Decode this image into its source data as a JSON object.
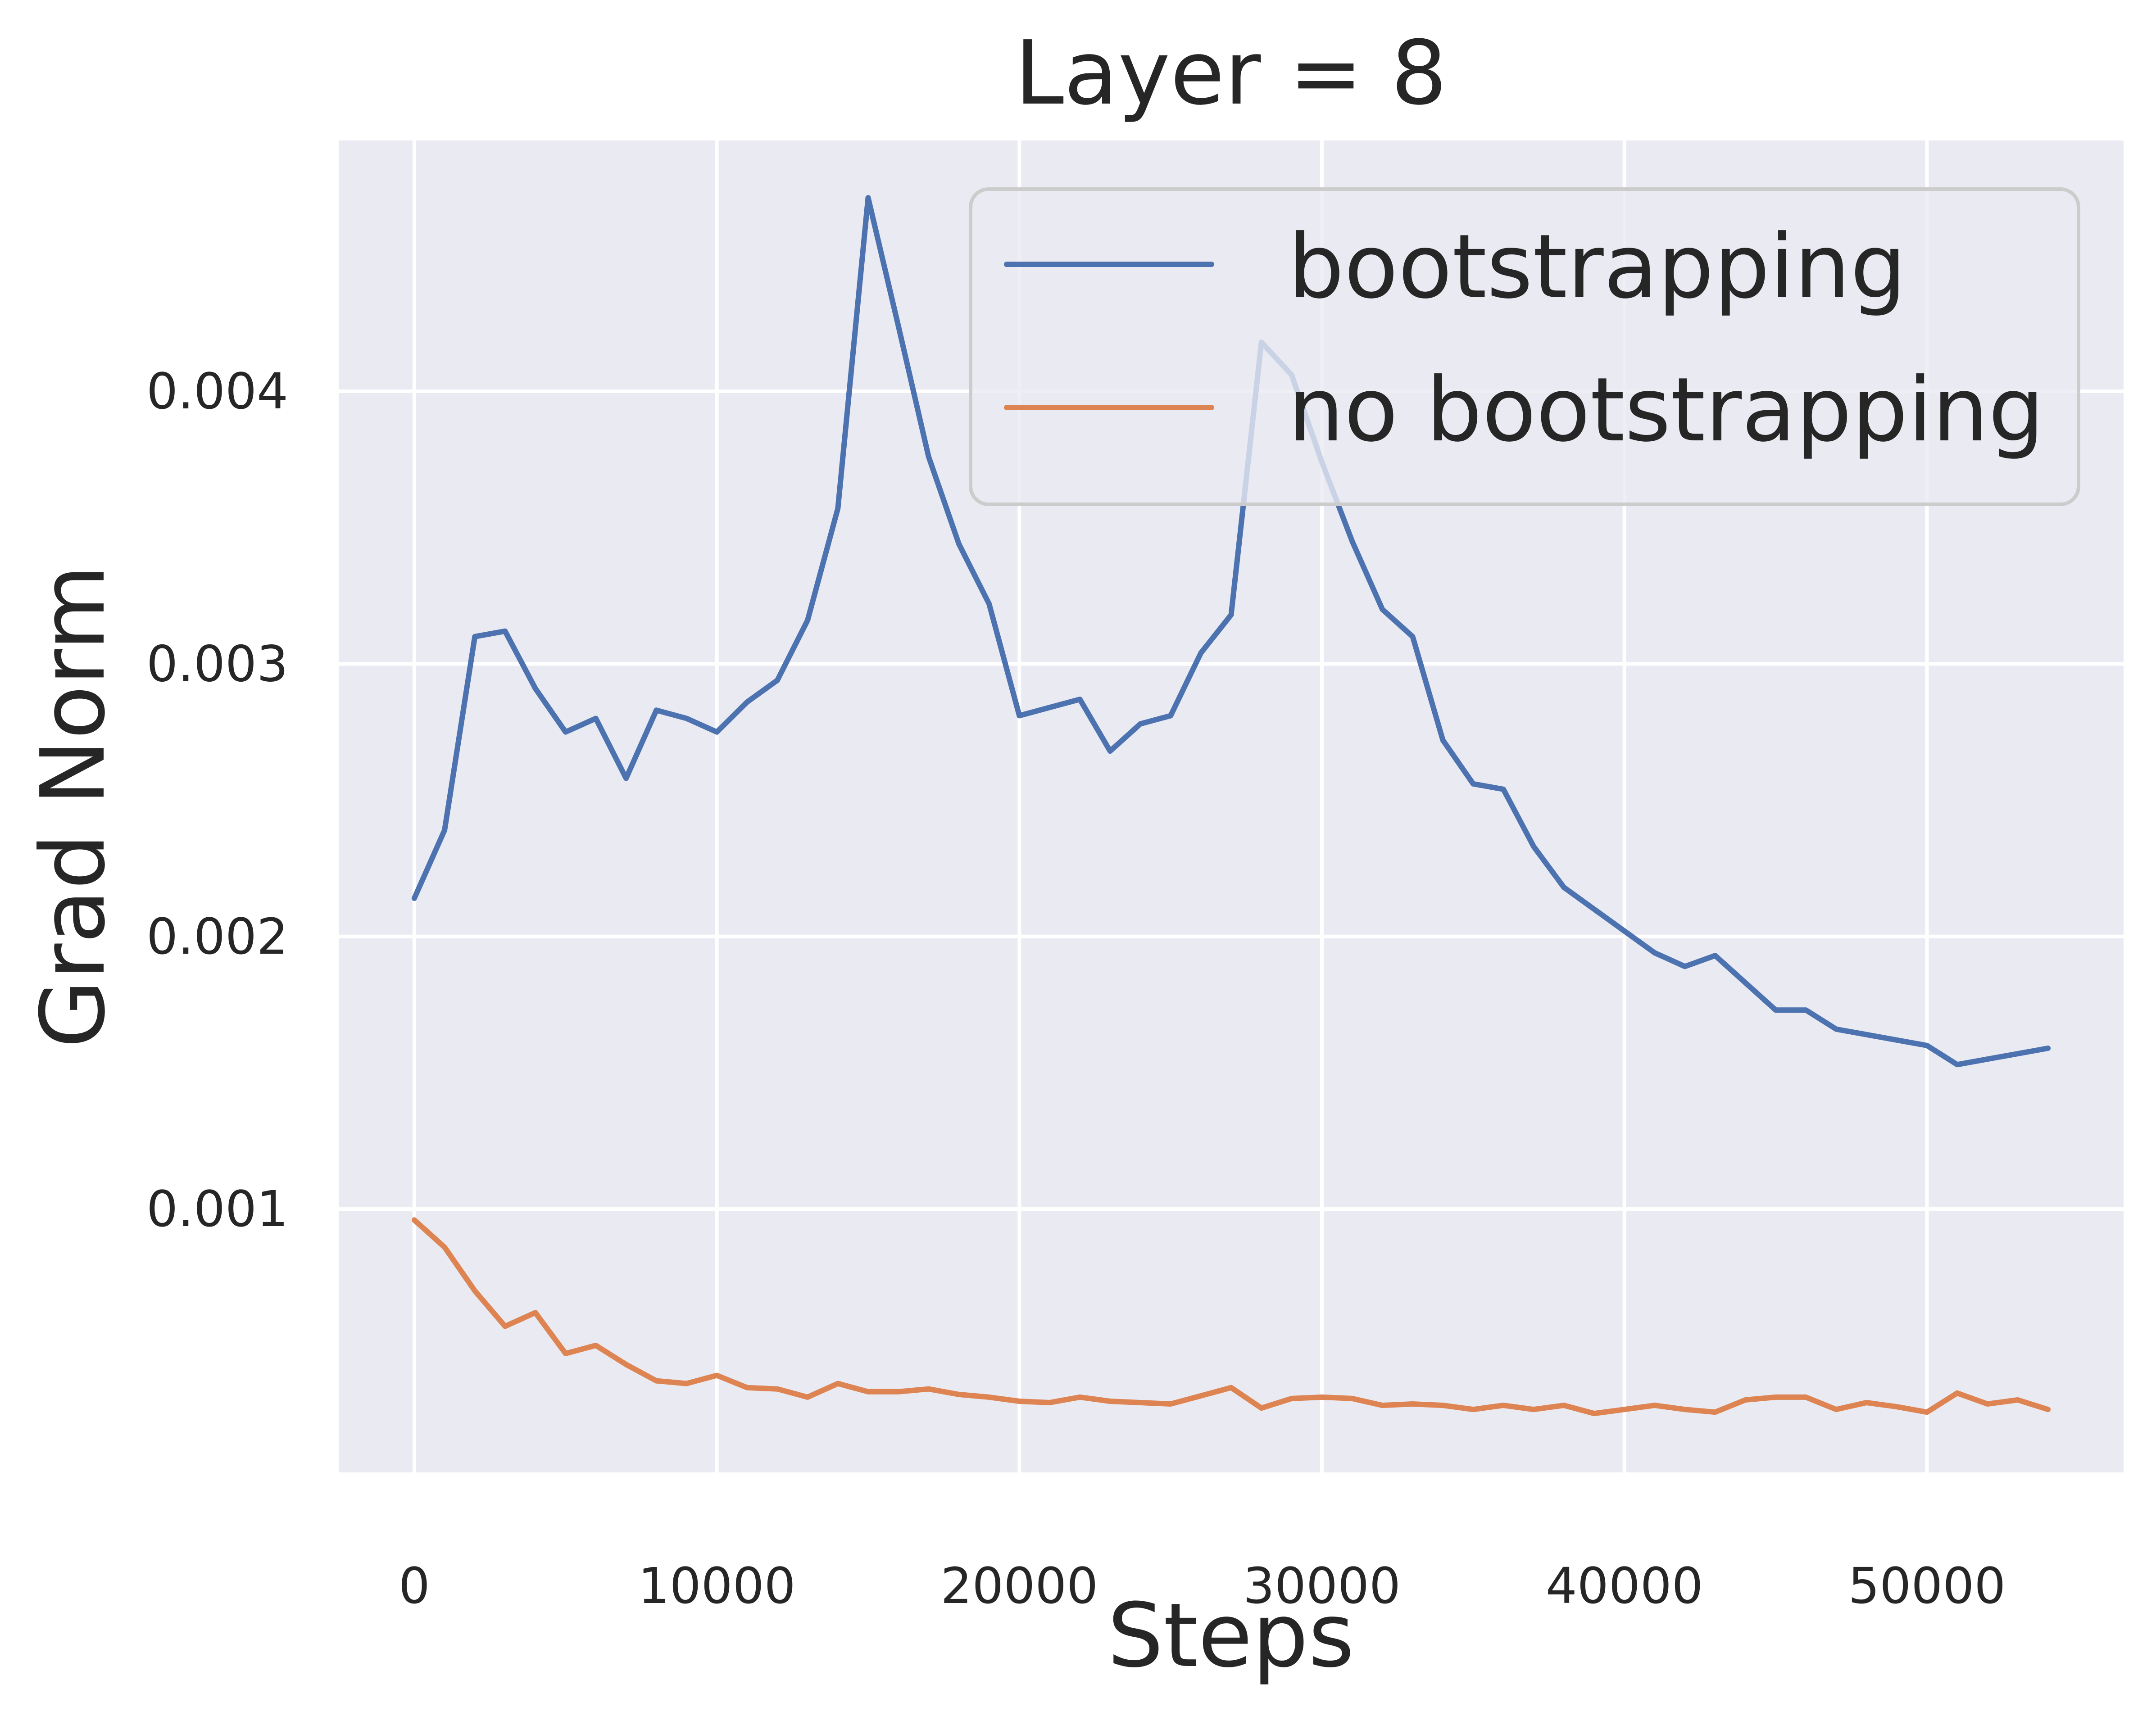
{
  "chart_data": {
    "type": "line",
    "title": "Layer = 8",
    "xlabel": "Steps",
    "ylabel": "Grad Norm",
    "xlim": [
      -2500,
      56500
    ],
    "ylim": [
      3.4e-05,
      0.00492
    ],
    "x_ticks": [
      0,
      10000,
      20000,
      30000,
      40000,
      50000
    ],
    "x_tick_labels": [
      "0",
      "10000",
      "20000",
      "30000",
      "40000",
      "50000"
    ],
    "y_ticks": [
      0.001,
      0.002,
      0.003,
      0.004
    ],
    "y_tick_labels": [
      "0.001",
      "0.002",
      "0.003",
      "0.004"
    ],
    "grid": true,
    "legend_position": "top-right",
    "background_color": "#EAEAF2",
    "x": [
      0,
      1000,
      2000,
      3000,
      4000,
      5000,
      6000,
      7000,
      8000,
      9000,
      10000,
      11000,
      12000,
      13000,
      14000,
      15000,
      16000,
      17000,
      18000,
      19000,
      20000,
      21000,
      22000,
      23000,
      24000,
      25000,
      26000,
      27000,
      28000,
      29000,
      30000,
      31000,
      32000,
      33000,
      34000,
      35000,
      36000,
      37000,
      38000,
      39000,
      40000,
      41000,
      42000,
      43000,
      44000,
      45000,
      46000,
      47000,
      48000,
      49000,
      50000,
      51000,
      52000,
      53000,
      54000
    ],
    "series": [
      {
        "name": "bootstrapping",
        "color": "#4C72B0",
        "values": [
          0.00214,
          0.00239,
          0.0031,
          0.00312,
          0.00291,
          0.00275,
          0.0028,
          0.00258,
          0.00283,
          0.0028,
          0.00275,
          0.00286,
          0.00294,
          0.00316,
          0.00357,
          0.00471,
          0.00424,
          0.00376,
          0.00344,
          0.00322,
          0.00281,
          0.00284,
          0.00287,
          0.00268,
          0.00278,
          0.00281,
          0.00304,
          0.00318,
          0.00418,
          0.00406,
          0.00374,
          0.00345,
          0.0032,
          0.0031,
          0.00272,
          0.00256,
          0.00254,
          0.00233,
          0.00218,
          0.0021,
          0.00202,
          0.00194,
          0.00189,
          0.00193,
          0.00183,
          0.00173,
          0.00173,
          0.00166,
          0.00164,
          0.00162,
          0.0016,
          0.00153,
          0.00155,
          0.00157,
          0.00159
        ]
      },
      {
        "name": "no bootstrapping",
        "color": "#DD8452",
        "values": [
          0.00096,
          0.00086,
          0.0007,
          0.00057,
          0.00062,
          0.00047,
          0.0005,
          0.00043,
          0.00037,
          0.00036,
          0.00039,
          0.000345,
          0.00034,
          0.00031,
          0.00036,
          0.00033,
          0.00033,
          0.00034,
          0.00032,
          0.00031,
          0.000295,
          0.00029,
          0.00031,
          0.000295,
          0.00029,
          0.000285,
          0.000315,
          0.000345,
          0.00027,
          0.000305,
          0.00031,
          0.000305,
          0.00028,
          0.000285,
          0.00028,
          0.000265,
          0.00028,
          0.000265,
          0.00028,
          0.00025,
          0.000265,
          0.00028,
          0.000265,
          0.000255,
          0.0003,
          0.00031,
          0.00031,
          0.000265,
          0.00029,
          0.000275,
          0.000255,
          0.000325,
          0.000285,
          0.0003,
          0.000265
        ]
      }
    ]
  }
}
